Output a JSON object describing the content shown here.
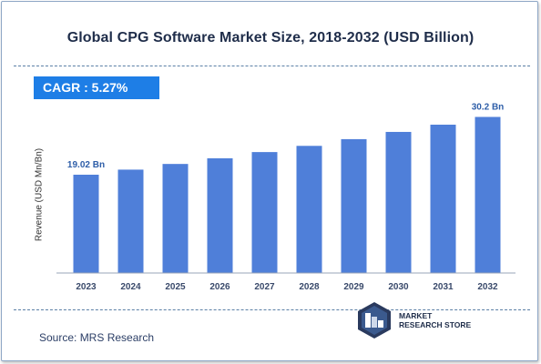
{
  "title": "Global CPG Software Market Size, 2018-2032 (USD Billion)",
  "cagr_label": "CAGR :  5.27%",
  "source": "Source: MRS Research",
  "logo": {
    "line1": "MARKET",
    "line2": "RESEARCH STORE",
    "icon": "market-research-store-logo"
  },
  "colors": {
    "bar": "#4f7fd9",
    "accent": "#1e7ee6",
    "title": "#1f2d4a",
    "data_label": "#2e5ea8"
  },
  "chart_data": {
    "type": "bar",
    "title": "Global CPG Software Market Size, 2018-2032 (USD Billion)",
    "xlabel": "",
    "ylabel": "Revenue (USD Mn/Bn)",
    "categories": [
      "2023",
      "2024",
      "2025",
      "2026",
      "2027",
      "2028",
      "2029",
      "2030",
      "2031",
      "2032"
    ],
    "values": [
      19.02,
      20.0,
      21.1,
      22.2,
      23.4,
      24.6,
      25.9,
      27.3,
      28.7,
      30.2
    ],
    "data_labels": [
      {
        "index": 0,
        "text": "19.02 Bn"
      },
      {
        "index": 9,
        "text": "30.2 Bn"
      }
    ],
    "ylim": [
      0,
      32.4
    ],
    "grid": false,
    "legend": "none"
  }
}
